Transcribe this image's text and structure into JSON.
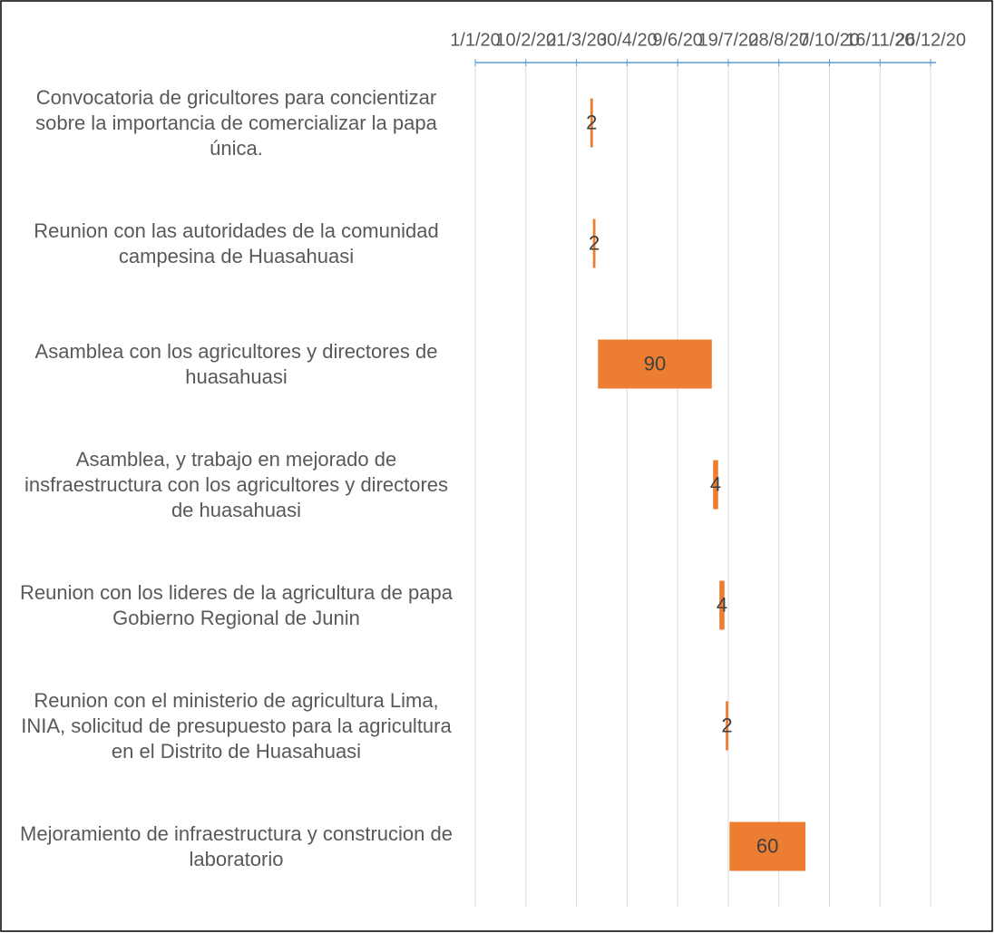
{
  "chart_data": {
    "type": "gantt",
    "categories": [
      "Convocatoria de gricultores para concientizar sobre la importancia de comercializar la papa única.",
      "Reunion con las autoridades de la comunidad campesina de Huasahuasi",
      "Asamblea con los agricultores y directores de huasahuasi",
      "Asamblea, y trabajo en mejorado de insfraestructura con los agricultores y directores de huasahuasi",
      "Reunion con los lideres de la agricultura de papa Gobierno Regional de Junin",
      "Reunion con el ministerio de agricultura Lima, INIA, solicitud de presupuesto para la agricultura en el Distrito de Huasahuasi",
      "Mejoramiento de infraestructura y construcion de laboratorio"
    ],
    "start": [
      "2020-04-01",
      "2020-04-03",
      "2020-04-07",
      "2020-07-07",
      "2020-07-12",
      "2020-07-17",
      "2020-07-20"
    ],
    "values": [
      2,
      2,
      90,
      4,
      4,
      2,
      60
    ],
    "color": "#ed7d31",
    "xlim": [
      "2020-01-01",
      "2021-01-05"
    ],
    "xticks": [
      {
        "value": "2020-01-01",
        "label": "1/1/20"
      },
      {
        "value": "2020-02-10",
        "label": "10/2/20"
      },
      {
        "value": "2020-03-21",
        "label": "21/3/20"
      },
      {
        "value": "2020-04-30",
        "label": "30/4/20"
      },
      {
        "value": "2020-06-09",
        "label": "9/6/20"
      },
      {
        "value": "2020-07-19",
        "label": "19/7/20"
      },
      {
        "value": "2020-08-28",
        "label": "28/8/20"
      },
      {
        "value": "2020-10-07",
        "label": "7/10/20"
      },
      {
        "value": "2020-11-16",
        "label": "16/11/20"
      },
      {
        "value": "2020-12-26",
        "label": "26/12/20"
      }
    ],
    "grid": true
  }
}
